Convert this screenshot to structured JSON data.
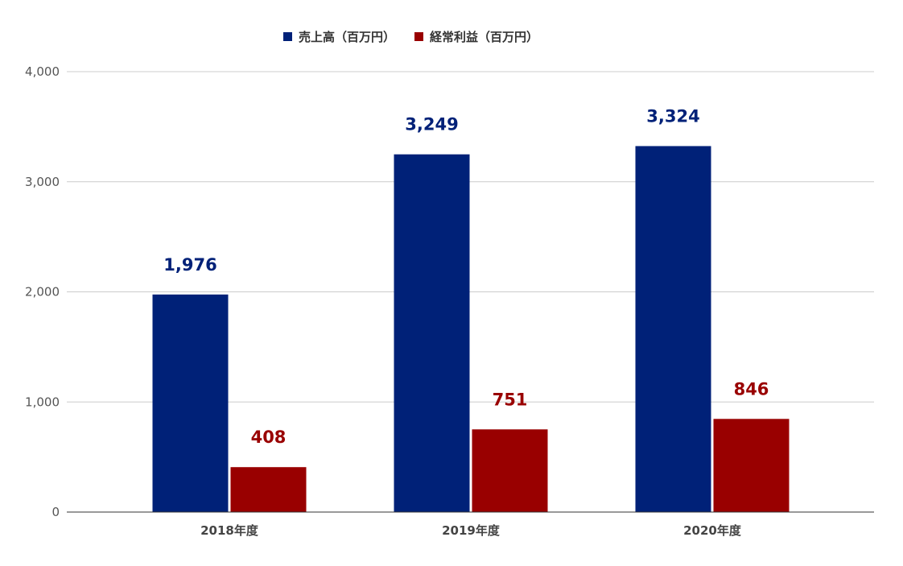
{
  "chart_data": {
    "type": "bar",
    "categories": [
      "2018年度",
      "2019年度",
      "2020年度"
    ],
    "series": [
      {
        "name": "売上高（百万円）",
        "values": [
          1976,
          3249,
          3324
        ],
        "labels": [
          "1,976",
          "3,249",
          "3,324"
        ],
        "color": "#002178"
      },
      {
        "name": "経常利益（百万円）",
        "values": [
          408,
          751,
          846
        ],
        "labels": [
          "408",
          "751",
          "846"
        ],
        "color": "#990000"
      }
    ],
    "ylim": [
      0,
      4000
    ],
    "yticks": [
      0,
      1000,
      2000,
      3000,
      4000
    ],
    "ytick_labels": [
      "0",
      "1,000",
      "2,000",
      "3,000",
      "4,000"
    ],
    "grid": true,
    "legend_position": "top-center"
  }
}
